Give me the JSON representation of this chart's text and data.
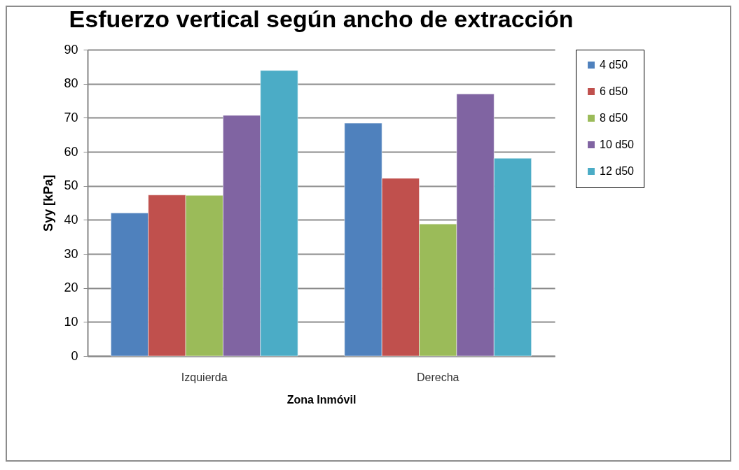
{
  "chart_data": {
    "type": "bar",
    "title": "Esfuerzo vertical según ancho de extracción",
    "xlabel": "Zona Inmóvil",
    "ylabel": "Syy [kPa]",
    "categories": [
      "Izquierda",
      "Derecha"
    ],
    "series": [
      {
        "name": "4 d50",
        "color": "#4f81bd",
        "values": [
          42.0,
          68.4
        ]
      },
      {
        "name": "6 d50",
        "color": "#c0504d",
        "values": [
          47.3,
          52.2
        ]
      },
      {
        "name": "8 d50",
        "color": "#9bbb59",
        "values": [
          47.2,
          38.8
        ]
      },
      {
        "name": "10 d50",
        "color": "#8064a2",
        "values": [
          70.7,
          77.0
        ]
      },
      {
        "name": "12 d50",
        "color": "#4bacc6",
        "values": [
          83.9,
          58.1
        ]
      }
    ],
    "ylim": [
      0,
      90
    ],
    "yticks": [
      0,
      10,
      20,
      30,
      40,
      50,
      60,
      70,
      80,
      90
    ],
    "grid": "y",
    "legend": "right"
  }
}
